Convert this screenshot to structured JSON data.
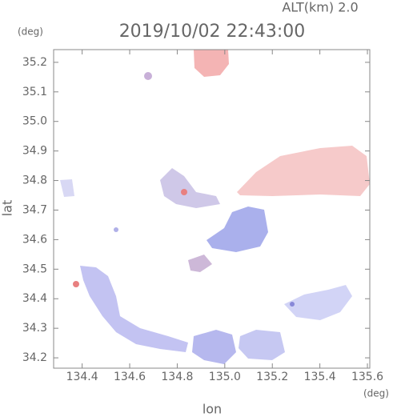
{
  "chart_data": {
    "type": "field",
    "title": "2019/10/02 22:43:00",
    "subtitle": "ALT(km) 2.0",
    "x_label": "lon",
    "y_label": "lat",
    "x_unit": "(deg)",
    "y_unit": "(deg)",
    "xlim": [
      134.28,
      135.61
    ],
    "ylim": [
      34.165,
      35.243
    ],
    "xticks": [
      134.4,
      134.6,
      134.8,
      {
        "value": 135,
        "label": "135.0"
      },
      135.2,
      135.4,
      135.6
    ],
    "yticks": [
      34.2,
      34.3,
      34.4,
      34.5,
      34.6,
      34.7,
      34.8,
      34.9,
      {
        "value": 35,
        "label": "35.0"
      },
      35.1,
      35.2
    ]
  }
}
